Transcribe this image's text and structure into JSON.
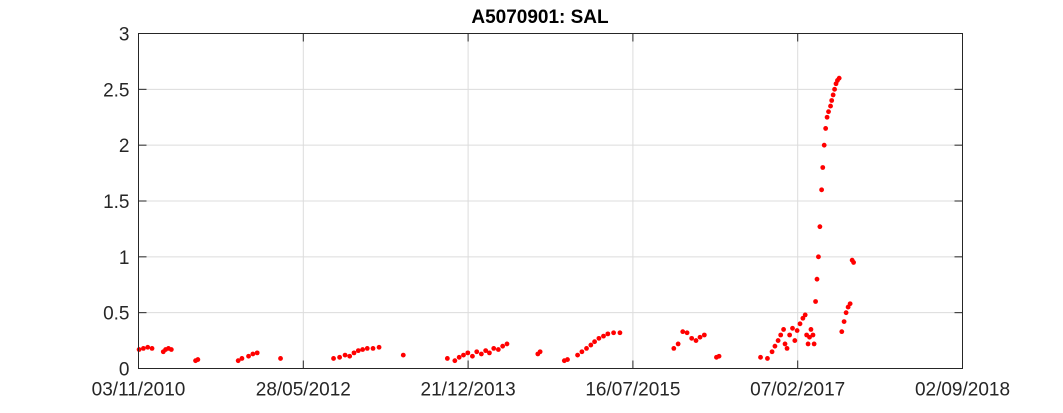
{
  "chart_data": {
    "type": "scatter",
    "title": "A5070901: SAL",
    "xlabel": "",
    "ylabel": "",
    "x_axis_type": "date",
    "xlim": [
      "2010-11-03",
      "2018-09-02"
    ],
    "ylim": [
      0,
      3
    ],
    "x_ticks": [
      "2010-11-03",
      "2012-05-28",
      "2013-12-21",
      "2015-07-16",
      "2017-02-07",
      "2018-09-02"
    ],
    "x_tick_labels": [
      "03/11/2010",
      "28/05/2012",
      "21/12/2013",
      "16/07/2015",
      "07/02/2017",
      "02/09/2018"
    ],
    "y_ticks": [
      0,
      0.5,
      1,
      1.5,
      2,
      2.5,
      3
    ],
    "y_tick_labels": [
      "0",
      "0.5",
      "1",
      "1.5",
      "2",
      "2.5",
      "3"
    ],
    "grid": true,
    "marker_color": "#ff0000",
    "series": [
      {
        "points": [
          [
            "2010-11-05",
            0.17
          ],
          [
            "2010-11-20",
            0.18
          ],
          [
            "2010-12-05",
            0.19
          ],
          [
            "2010-12-20",
            0.18
          ],
          [
            "2011-01-28",
            0.15
          ],
          [
            "2011-02-05",
            0.17
          ],
          [
            "2011-02-15",
            0.18
          ],
          [
            "2011-02-25",
            0.17
          ],
          [
            "2011-05-20",
            0.07
          ],
          [
            "2011-05-28",
            0.08
          ],
          [
            "2011-10-15",
            0.07
          ],
          [
            "2011-10-28",
            0.09
          ],
          [
            "2011-11-20",
            0.11
          ],
          [
            "2011-12-05",
            0.13
          ],
          [
            "2011-12-20",
            0.14
          ],
          [
            "2012-03-10",
            0.09
          ],
          [
            "2012-09-10",
            0.09
          ],
          [
            "2012-10-01",
            0.1
          ],
          [
            "2012-10-20",
            0.12
          ],
          [
            "2012-11-05",
            0.11
          ],
          [
            "2012-11-20",
            0.14
          ],
          [
            "2012-12-05",
            0.16
          ],
          [
            "2012-12-20",
            0.17
          ],
          [
            "2013-01-05",
            0.18
          ],
          [
            "2013-01-25",
            0.18
          ],
          [
            "2013-02-15",
            0.19
          ],
          [
            "2013-05-10",
            0.12
          ],
          [
            "2013-10-10",
            0.09
          ],
          [
            "2013-11-05",
            0.07
          ],
          [
            "2013-11-20",
            0.1
          ],
          [
            "2013-12-05",
            0.12
          ],
          [
            "2013-12-20",
            0.14
          ],
          [
            "2014-01-05",
            0.11
          ],
          [
            "2014-01-20",
            0.15
          ],
          [
            "2014-02-05",
            0.13
          ],
          [
            "2014-02-20",
            0.16
          ],
          [
            "2014-03-05",
            0.14
          ],
          [
            "2014-03-20",
            0.18
          ],
          [
            "2014-04-05",
            0.17
          ],
          [
            "2014-04-20",
            0.2
          ],
          [
            "2014-05-05",
            0.22
          ],
          [
            "2014-08-20",
            0.13
          ],
          [
            "2014-08-28",
            0.15
          ],
          [
            "2014-11-20",
            0.07
          ],
          [
            "2014-12-01",
            0.08
          ],
          [
            "2015-01-05",
            0.12
          ],
          [
            "2015-01-20",
            0.15
          ],
          [
            "2015-02-05",
            0.18
          ],
          [
            "2015-02-20",
            0.21
          ],
          [
            "2015-03-05",
            0.24
          ],
          [
            "2015-03-20",
            0.27
          ],
          [
            "2015-04-05",
            0.29
          ],
          [
            "2015-04-20",
            0.31
          ],
          [
            "2015-05-10",
            0.32
          ],
          [
            "2015-06-01",
            0.32
          ],
          [
            "2015-12-05",
            0.18
          ],
          [
            "2015-12-20",
            0.22
          ],
          [
            "2016-01-05",
            0.33
          ],
          [
            "2016-01-20",
            0.32
          ],
          [
            "2016-02-05",
            0.27
          ],
          [
            "2016-02-20",
            0.25
          ],
          [
            "2016-03-05",
            0.28
          ],
          [
            "2016-03-20",
            0.3
          ],
          [
            "2016-05-01",
            0.1
          ],
          [
            "2016-05-10",
            0.11
          ],
          [
            "2016-10-01",
            0.1
          ],
          [
            "2016-10-25",
            0.09
          ],
          [
            "2016-11-10",
            0.15
          ],
          [
            "2016-11-20",
            0.2
          ],
          [
            "2016-12-01",
            0.25
          ],
          [
            "2016-12-10",
            0.3
          ],
          [
            "2016-12-20",
            0.35
          ],
          [
            "2016-12-25",
            0.22
          ],
          [
            "2017-01-01",
            0.18
          ],
          [
            "2017-01-10",
            0.3
          ],
          [
            "2017-01-20",
            0.36
          ],
          [
            "2017-01-28",
            0.25
          ],
          [
            "2017-02-05",
            0.34
          ],
          [
            "2017-02-15",
            0.4
          ],
          [
            "2017-02-25",
            0.45
          ],
          [
            "2017-03-05",
            0.48
          ],
          [
            "2017-03-10",
            0.3
          ],
          [
            "2017-03-15",
            0.22
          ],
          [
            "2017-03-20",
            0.28
          ],
          [
            "2017-03-25",
            0.35
          ],
          [
            "2017-04-01",
            0.3
          ],
          [
            "2017-04-05",
            0.22
          ],
          [
            "2017-04-10",
            0.6
          ],
          [
            "2017-04-15",
            0.8
          ],
          [
            "2017-04-20",
            1.0
          ],
          [
            "2017-04-25",
            1.27
          ],
          [
            "2017-05-01",
            1.6
          ],
          [
            "2017-05-05",
            1.8
          ],
          [
            "2017-05-10",
            2.0
          ],
          [
            "2017-05-15",
            2.15
          ],
          [
            "2017-05-20",
            2.25
          ],
          [
            "2017-05-25",
            2.3
          ],
          [
            "2017-06-01",
            2.35
          ],
          [
            "2017-06-05",
            2.4
          ],
          [
            "2017-06-10",
            2.45
          ],
          [
            "2017-06-15",
            2.5
          ],
          [
            "2017-06-20",
            2.55
          ],
          [
            "2017-06-25",
            2.58
          ],
          [
            "2017-07-01",
            2.6
          ],
          [
            "2017-07-10",
            0.33
          ],
          [
            "2017-07-18",
            0.42
          ],
          [
            "2017-07-25",
            0.5
          ],
          [
            "2017-08-01",
            0.55
          ],
          [
            "2017-08-08",
            0.58
          ],
          [
            "2017-08-15",
            0.97
          ],
          [
            "2017-08-20",
            0.95
          ]
        ]
      }
    ]
  }
}
